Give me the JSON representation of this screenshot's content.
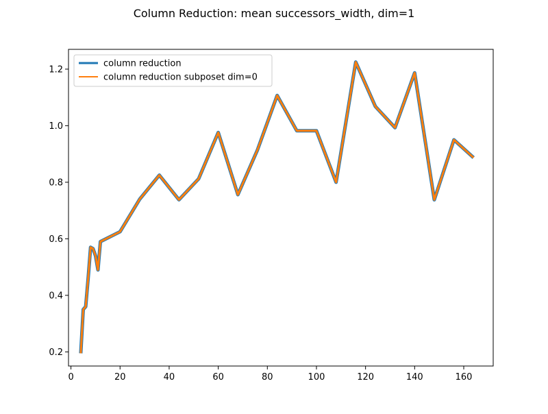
{
  "chart_data": {
    "type": "line",
    "title": "Column Reduction: mean successors_width, dim=1",
    "xlabel": "",
    "ylabel": "",
    "xlim": [
      -1.0,
      172.0
    ],
    "ylim": [
      0.15,
      1.27
    ],
    "x_ticks": [
      0,
      20,
      40,
      60,
      80,
      100,
      120,
      140,
      160
    ],
    "y_ticks": [
      0.2,
      0.4,
      0.6,
      0.8,
      1.0,
      1.2
    ],
    "x_tick_labels": [
      "0",
      "20",
      "40",
      "60",
      "80",
      "100",
      "120",
      "140",
      "160"
    ],
    "y_tick_labels": [
      "0.2",
      "0.4",
      "0.6",
      "0.8",
      "1.0",
      "1.2"
    ],
    "grid": false,
    "legend_position": "top-left",
    "x": [
      4,
      5,
      6,
      7,
      8,
      9,
      10,
      11,
      12,
      20,
      28,
      36,
      44,
      52,
      60,
      68,
      76,
      84,
      92,
      100,
      108,
      116,
      124,
      132,
      140,
      148,
      156,
      164
    ],
    "series": [
      {
        "name": "column reduction",
        "color": "#1f77b4",
        "values": [
          0.195,
          0.35,
          0.36,
          0.46,
          0.57,
          0.565,
          0.54,
          0.49,
          0.59,
          0.625,
          0.74,
          0.825,
          0.738,
          0.812,
          0.976,
          0.756,
          0.915,
          1.107,
          0.982,
          0.982,
          0.8,
          1.225,
          1.068,
          0.993,
          1.187,
          0.738,
          0.95,
          0.887
        ]
      },
      {
        "name": "column reduction subposet dim=0",
        "color": "#ff7f0e",
        "values": [
          0.195,
          0.35,
          0.36,
          0.46,
          0.57,
          0.565,
          0.54,
          0.49,
          0.59,
          0.625,
          0.74,
          0.825,
          0.738,
          0.812,
          0.976,
          0.756,
          0.915,
          1.107,
          0.982,
          0.982,
          0.8,
          1.225,
          1.068,
          0.993,
          1.187,
          0.738,
          0.95,
          0.887
        ]
      }
    ]
  }
}
